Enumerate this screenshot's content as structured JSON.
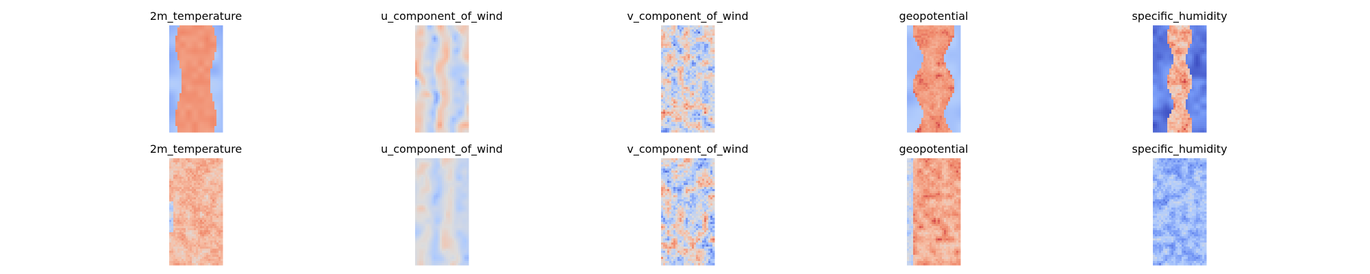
{
  "figure": {
    "background": "#ffffff",
    "colormap": "coolwarm",
    "colormap_stops": [
      "#3b4cc0",
      "#7396f5",
      "#b0cbfc",
      "#dddcdc",
      "#f6bfa6",
      "#f08a6c",
      "#b40426"
    ]
  },
  "chart_data": [
    {
      "type": "heatmap",
      "title": "2m_temperature",
      "row": 0,
      "col": 0,
      "grid_on": false,
      "pattern": "warm-central-band",
      "aspect_rows": 2,
      "mean_level": 0.72
    },
    {
      "type": "heatmap",
      "title": "u_component_of_wind",
      "row": 0,
      "col": 1,
      "grid_on": false,
      "pattern": "vertical-streaks",
      "mean_level": 0.48
    },
    {
      "type": "heatmap",
      "title": "v_component_of_wind",
      "row": 0,
      "col": 2,
      "grid_on": false,
      "pattern": "patchy-noise",
      "mean_level": 0.47
    },
    {
      "type": "heatmap",
      "title": "geopotential",
      "row": 0,
      "col": 3,
      "grid_on": false,
      "pattern": "warm-central-band-wavy",
      "mean_level": 0.7
    },
    {
      "type": "heatmap",
      "title": "specific_humidity",
      "row": 0,
      "col": 4,
      "grid_on": false,
      "pattern": "cold-with-hot-center",
      "mean_level": 0.25
    },
    {
      "type": "heatmap",
      "title": "2m_temperature",
      "row": 1,
      "col": 0,
      "grid_on": false,
      "pattern": "warm-noisy",
      "mean_level": 0.67
    },
    {
      "type": "heatmap",
      "title": "u_component_of_wind",
      "row": 1,
      "col": 1,
      "grid_on": false,
      "pattern": "vertical-streaks-light",
      "mean_level": 0.45
    },
    {
      "type": "heatmap",
      "title": "v_component_of_wind",
      "row": 1,
      "col": 2,
      "grid_on": false,
      "pattern": "patchy-noise",
      "mean_level": 0.5
    },
    {
      "type": "heatmap",
      "title": "geopotential",
      "row": 1,
      "col": 3,
      "grid_on": false,
      "pattern": "warm-noisy-dark",
      "mean_level": 0.73
    },
    {
      "type": "heatmap",
      "title": "specific_humidity",
      "row": 1,
      "col": 4,
      "grid_on": false,
      "pattern": "cool-noisy",
      "mean_level": 0.3
    }
  ]
}
